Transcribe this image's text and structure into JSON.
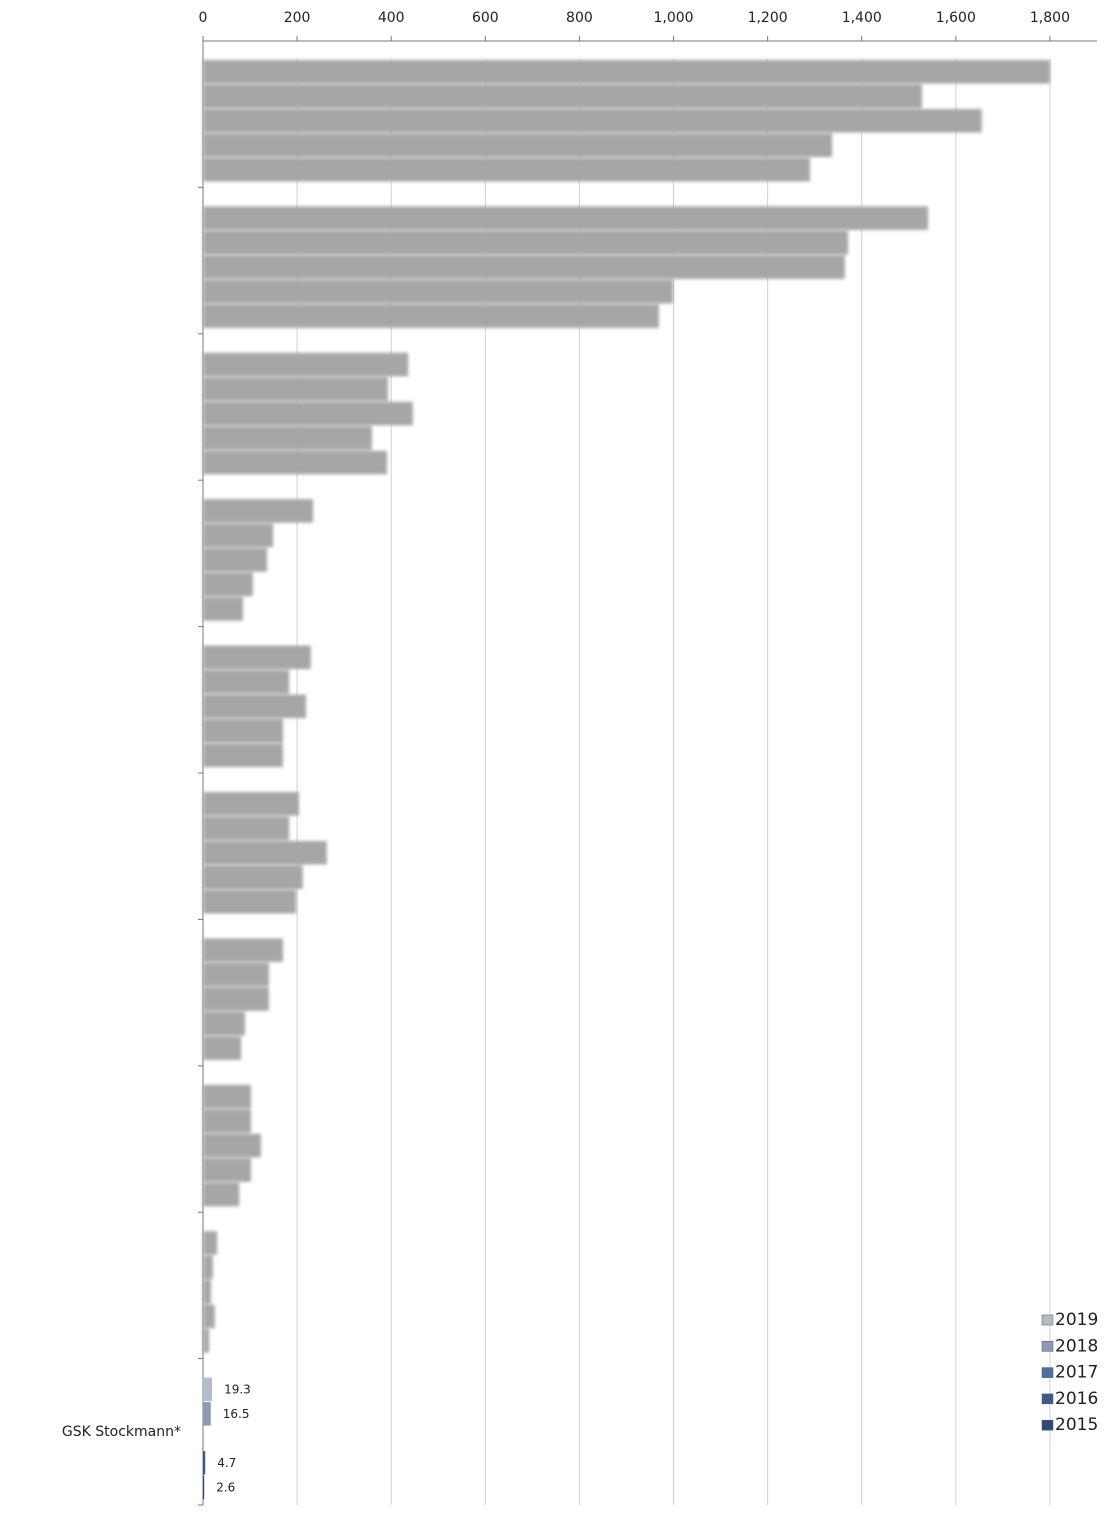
{
  "chart_data": {
    "type": "hbar",
    "categories": [
      null,
      null,
      null,
      null,
      null,
      null,
      null,
      null,
      null,
      "GSK Stockmann*"
    ],
    "series": [
      {
        "name": "2019",
        "color": "#b4bccb",
        "values": [
          1800,
          1541,
          436,
          234,
          229,
          204,
          170,
          102,
          30,
          19.3
        ]
      },
      {
        "name": "2018",
        "color": "#8d9ab5",
        "values": [
          1528,
          1371,
          393,
          149,
          183,
          183,
          140,
          102,
          21,
          16.5
        ]
      },
      {
        "name": "2017",
        "color": "#4f6fa3",
        "values": [
          1655,
          1364,
          446,
          136,
          219,
          263,
          140,
          123,
          17,
          null
        ]
      },
      {
        "name": "2016",
        "color": "#3c5a8f",
        "values": [
          1337,
          999,
          359,
          106,
          170,
          212,
          89,
          102,
          25,
          4.7
        ]
      },
      {
        "name": "2015",
        "color": "#2f4a7a",
        "values": [
          1290,
          969,
          391,
          85,
          170,
          198,
          81,
          77,
          13,
          2.6
        ]
      }
    ],
    "redacted_color": "#a6a6a6",
    "xlim": [
      0,
      1900
    ],
    "xticks": [
      0,
      200,
      400,
      600,
      800,
      {
        "value": 1000,
        "label": "1,000"
      },
      {
        "value": 1200,
        "label": "1,200"
      },
      {
        "value": 1400,
        "label": "1,400"
      },
      {
        "value": 1600,
        "label": "1,600"
      },
      {
        "value": 1800,
        "label": "1,800"
      }
    ],
    "grid": true,
    "legend": "bottom-right"
  }
}
